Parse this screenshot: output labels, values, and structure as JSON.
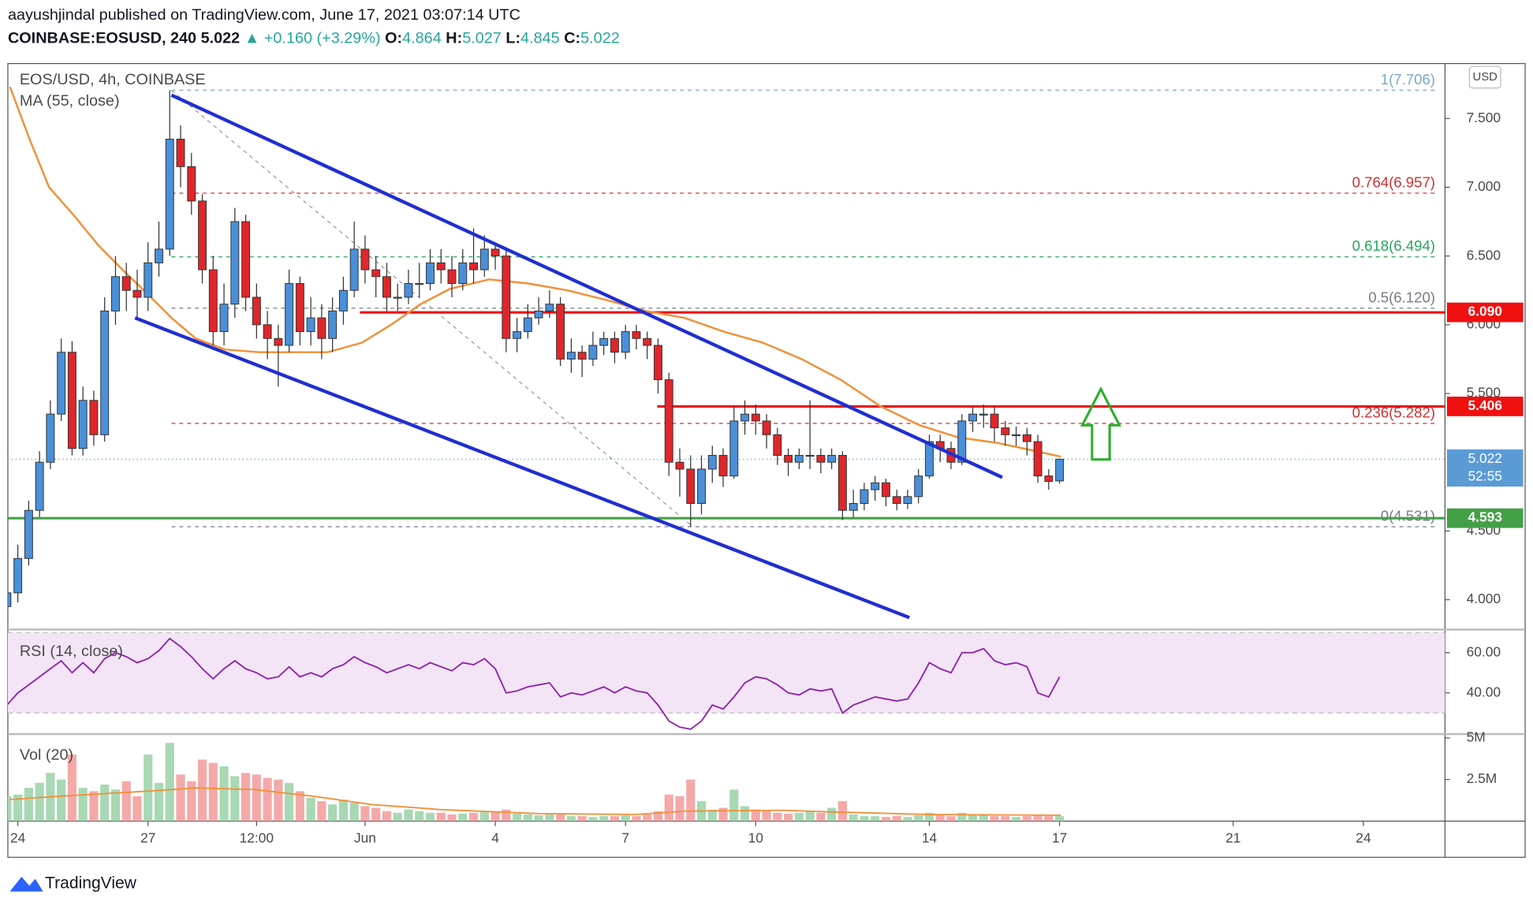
{
  "header": {
    "line1": "aayushjindal published on TradingView.com, June 17, 2021 03:07:14 UTC",
    "symbol": "COINBASE:EOSUSD, 240",
    "price": "5.022",
    "change": "▲ +0.160 (+3.29%)",
    "ohlc": [
      {
        "k": "O:",
        "v": "4.864"
      },
      {
        "k": "H:",
        "v": "5.027"
      },
      {
        "k": "L:",
        "v": "4.845"
      },
      {
        "k": "C:",
        "v": "5.022"
      }
    ]
  },
  "footer": {
    "brand": "TradingView"
  },
  "currency": "USD",
  "chart_data": [
    {
      "type": "candlestick",
      "title": "EOS/USD, 4h, COINBASE",
      "up_color": "#4a90d9",
      "down_color": "#e0262b",
      "grid": false,
      "xlim": [
        -0.23,
        32.88
      ],
      "ylim": [
        3.79,
        7.9
      ],
      "xticks": [
        {
          "value": 0,
          "label": "24"
        },
        {
          "value": 3,
          "label": "27"
        },
        {
          "value": 5.5,
          "label": "12:00"
        },
        {
          "value": 8,
          "label": "Jun"
        },
        {
          "value": 11,
          "label": "4"
        },
        {
          "value": 14,
          "label": "7"
        },
        {
          "value": 17,
          "label": "10"
        },
        {
          "value": 21,
          "label": "14"
        },
        {
          "value": 24,
          "label": "17"
        },
        {
          "value": 28,
          "label": "21"
        },
        {
          "value": 31,
          "label": "24"
        }
      ],
      "yticks": [
        {
          "value": 7.5,
          "label": "7.500"
        },
        {
          "value": 7,
          "label": "7.000"
        },
        {
          "value": 6.5,
          "label": "6.500"
        },
        {
          "value": 6,
          "label": "6.000"
        },
        {
          "value": 5.5,
          "label": "5.500"
        },
        {
          "value": 4.5,
          "label": "4.500"
        },
        {
          "value": 4,
          "label": "4.000"
        }
      ],
      "x": [
        -0.25,
        0,
        0.25,
        0.5,
        0.75,
        1,
        1.25,
        1.5,
        1.75,
        2,
        2.25,
        2.5,
        2.75,
        3,
        3.25,
        3.5,
        3.75,
        4,
        4.25,
        4.5,
        4.75,
        5,
        5.25,
        5.5,
        5.75,
        6,
        6.25,
        6.5,
        6.75,
        7,
        7.25,
        7.5,
        7.75,
        8,
        8.25,
        8.5,
        8.75,
        9,
        9.25,
        9.5,
        9.75,
        10,
        10.25,
        10.5,
        10.75,
        11,
        11.25,
        11.5,
        11.75,
        12,
        12.25,
        12.5,
        12.75,
        13,
        13.25,
        13.5,
        13.75,
        14,
        14.25,
        14.5,
        14.75,
        15,
        15.25,
        15.5,
        15.75,
        16,
        16.25,
        16.5,
        16.75,
        17,
        17.25,
        17.5,
        17.75,
        18,
        18.25,
        18.5,
        18.75,
        19,
        19.25,
        19.5,
        19.75,
        20,
        20.25,
        20.5,
        20.75,
        21,
        21.25,
        21.5,
        21.75,
        22,
        22.25,
        22.5,
        22.75,
        23,
        23.25,
        23.5,
        23.75,
        24
      ],
      "open": [
        3.95,
        4.05,
        4.3,
        4.65,
        5.0,
        5.35,
        5.8,
        5.1,
        5.45,
        5.2,
        6.1,
        6.35,
        6.25,
        6.2,
        6.45,
        6.55,
        7.35,
        7.15,
        6.9,
        6.4,
        5.95,
        6.15,
        6.75,
        6.2,
        6.0,
        5.9,
        5.85,
        6.3,
        5.95,
        6.05,
        5.9,
        6.1,
        6.25,
        6.55,
        6.4,
        6.35,
        6.2,
        6.2,
        6.3,
        6.3,
        6.45,
        6.4,
        6.3,
        6.45,
        6.4,
        6.55,
        6.5,
        5.9,
        5.95,
        6.05,
        6.1,
        6.15,
        5.75,
        5.8,
        5.75,
        5.85,
        5.9,
        5.8,
        5.95,
        5.9,
        5.85,
        5.6,
        5.0,
        4.95,
        4.7,
        4.95,
        5.05,
        4.9,
        5.3,
        5.35,
        5.3,
        5.2,
        5.05,
        5.0,
        5.05,
        5.05,
        5.0,
        5.05,
        4.65,
        4.7,
        4.8,
        4.85,
        4.75,
        4.7,
        4.75,
        4.9,
        5.15,
        5.1,
        5.0,
        5.3,
        5.35,
        5.35,
        5.25,
        5.2,
        5.2,
        5.15,
        4.9,
        4.864
      ],
      "high": [
        4.15,
        4.4,
        4.72,
        5.08,
        5.45,
        5.9,
        5.88,
        5.55,
        5.52,
        6.2,
        6.5,
        6.45,
        6.4,
        6.6,
        6.75,
        7.706,
        7.45,
        7.25,
        6.95,
        6.5,
        6.3,
        6.85,
        6.8,
        6.3,
        6.1,
        6.0,
        6.4,
        6.35,
        6.2,
        6.15,
        6.2,
        6.35,
        6.75,
        6.65,
        6.5,
        6.45,
        6.3,
        6.4,
        6.45,
        6.55,
        6.55,
        6.5,
        6.55,
        6.7,
        6.65,
        6.6,
        6.55,
        6.05,
        6.15,
        6.2,
        6.25,
        6.2,
        5.9,
        5.85,
        5.95,
        5.95,
        5.95,
        6.0,
        6.0,
        5.95,
        5.9,
        5.65,
        5.1,
        5.05,
        5.05,
        5.12,
        5.1,
        5.4,
        5.45,
        5.42,
        5.35,
        5.25,
        5.1,
        5.1,
        5.45,
        5.1,
        5.1,
        5.08,
        4.8,
        4.85,
        4.9,
        4.88,
        4.8,
        4.8,
        4.95,
        5.2,
        5.2,
        5.15,
        5.35,
        5.4,
        5.42,
        5.4,
        5.3,
        5.26,
        5.25,
        5.2,
        4.95,
        5.027
      ],
      "low": [
        3.9,
        3.98,
        4.25,
        4.6,
        4.95,
        5.3,
        5.05,
        5.05,
        5.12,
        5.15,
        6.0,
        6.1,
        6.05,
        6.1,
        6.35,
        6.5,
        7.0,
        6.8,
        6.3,
        5.85,
        5.85,
        6.05,
        6.1,
        5.9,
        5.75,
        5.55,
        5.8,
        5.85,
        5.85,
        5.75,
        5.8,
        6.0,
        6.2,
        6.3,
        6.2,
        6.1,
        6.1,
        6.15,
        6.2,
        6.25,
        6.3,
        6.2,
        6.25,
        6.3,
        6.35,
        6.4,
        5.8,
        5.8,
        5.9,
        6.0,
        6.05,
        5.7,
        5.65,
        5.62,
        5.7,
        5.78,
        5.72,
        5.75,
        5.82,
        5.75,
        5.5,
        4.9,
        4.75,
        4.531,
        4.62,
        4.85,
        4.82,
        4.88,
        5.2,
        5.2,
        5.1,
        4.98,
        4.9,
        4.95,
        4.95,
        4.92,
        4.95,
        4.58,
        4.6,
        4.65,
        4.72,
        4.68,
        4.65,
        4.66,
        4.7,
        4.88,
        5.0,
        4.95,
        4.98,
        5.22,
        5.25,
        5.15,
        5.12,
        5.12,
        5.05,
        4.85,
        4.8,
        4.845
      ],
      "close": [
        4.05,
        4.3,
        4.65,
        5.0,
        5.35,
        5.8,
        5.1,
        5.45,
        5.2,
        6.1,
        6.35,
        6.25,
        6.2,
        6.45,
        6.55,
        7.35,
        7.15,
        6.9,
        6.4,
        5.95,
        6.15,
        6.75,
        6.2,
        6.0,
        5.9,
        5.85,
        6.3,
        5.95,
        6.05,
        5.9,
        6.1,
        6.25,
        6.55,
        6.4,
        6.35,
        6.2,
        6.2,
        6.3,
        6.3,
        6.45,
        6.4,
        6.3,
        6.45,
        6.4,
        6.55,
        6.5,
        5.9,
        5.95,
        6.05,
        6.1,
        6.15,
        5.75,
        5.8,
        5.75,
        5.85,
        5.9,
        5.8,
        5.95,
        5.9,
        5.85,
        5.6,
        5.0,
        4.95,
        4.7,
        4.95,
        5.05,
        4.9,
        5.3,
        5.35,
        5.3,
        5.2,
        5.05,
        5.0,
        5.05,
        5.05,
        5.0,
        5.05,
        4.65,
        4.7,
        4.8,
        4.85,
        4.75,
        4.7,
        4.75,
        4.9,
        5.15,
        5.1,
        5.0,
        5.3,
        5.35,
        5.35,
        5.25,
        5.2,
        5.2,
        5.15,
        4.9,
        4.86,
        5.022
      ],
      "ma": {
        "name": "MA (55, close)",
        "color": "#f0913a",
        "x": [
          -0.18,
          0.27,
          0.72,
          1.28,
          1.85,
          2.41,
          2.97,
          3.54,
          4.1,
          4.77,
          5.56,
          6.35,
          7.14,
          7.93,
          8.6,
          9.28,
          9.95,
          10.86,
          11.76,
          12.66,
          13.56,
          14.46,
          15.36,
          16.26,
          17.16,
          18.06,
          18.96,
          19.86,
          20.77,
          21.67,
          22.57,
          23.47,
          24.03
        ],
        "values": [
          7.73,
          7.35,
          7.0,
          6.8,
          6.58,
          6.4,
          6.23,
          6.05,
          5.9,
          5.82,
          5.8,
          5.8,
          5.8,
          5.87,
          6.0,
          6.15,
          6.26,
          6.33,
          6.3,
          6.25,
          6.18,
          6.1,
          6.05,
          5.95,
          5.87,
          5.75,
          5.6,
          5.41,
          5.27,
          5.18,
          5.14,
          5.08,
          5.04
        ]
      },
      "trendlines": [
        {
          "color": "#1f2fd1",
          "points": [
            {
              "x": 3.54,
              "y": 7.67
            },
            {
              "x": 22.68,
              "y": 4.89
            }
          ]
        },
        {
          "color": "#1f2fd1",
          "points": [
            {
              "x": 2.7,
              "y": 6.05
            },
            {
              "x": 20.54,
              "y": 3.87
            }
          ]
        }
      ],
      "fib": {
        "start": 3.54,
        "diagonal": [
          {
            "x": 3.54,
            "y": 7.706
          },
          {
            "x": 15.55,
            "y": 4.531
          }
        ],
        "levels": [
          {
            "label": "1(7.706)",
            "value": 7.706,
            "color": "#7ea7c9"
          },
          {
            "label": "0.764(6.957)",
            "value": 6.957,
            "color": "#d32f2f"
          },
          {
            "label": "0.618(6.494)",
            "value": 6.494,
            "color": "#26a65b"
          },
          {
            "label": "0.5(6.120)",
            "value": 6.12,
            "color": "#787b86"
          },
          {
            "label": "0.236(5.282)",
            "value": 5.282,
            "color": "#d32f2f"
          },
          {
            "label": "0(4.531)",
            "value": 4.531,
            "color": "#787b86"
          }
        ]
      },
      "levels": [
        {
          "value": 6.09,
          "label": "6.090",
          "color": "#f01010",
          "from": 7.88
        },
        {
          "value": 5.406,
          "label": "5.406",
          "color": "#f01010",
          "from": 14.73
        },
        {
          "value": 4.593,
          "label": "4.593",
          "color": "#43a047",
          "from": -0.23
        }
      ],
      "last": {
        "value": 5.022,
        "label": "5.022",
        "countdown": "52:55",
        "color": "#5b9bd5"
      }
    },
    {
      "type": "line",
      "title": "RSI (14, close)",
      "color": "#8e24aa",
      "band": [
        30,
        70
      ],
      "band_color": "#f3e5f5",
      "ylim": [
        20,
        71
      ],
      "yticks": [
        {
          "value": 60,
          "label": "60.00"
        },
        {
          "value": 40,
          "label": "40.00"
        }
      ],
      "values": [
        34,
        40,
        44,
        48,
        52,
        56,
        50,
        55,
        50,
        57,
        60,
        58,
        55,
        57,
        61,
        67,
        63,
        58,
        52,
        47,
        52,
        56,
        52,
        50,
        47,
        48,
        53,
        48,
        50,
        48,
        52,
        54,
        58,
        55,
        53,
        50,
        52,
        54,
        52,
        55,
        53,
        51,
        55,
        54,
        57,
        52,
        40,
        41,
        43,
        44,
        45,
        38,
        40,
        39,
        41,
        43,
        40,
        43,
        41,
        40,
        34,
        26,
        23,
        22,
        26,
        34,
        32,
        38,
        45,
        48,
        47,
        44,
        40,
        39,
        42,
        41,
        42,
        30,
        34,
        36,
        38,
        37,
        36,
        37,
        45,
        55,
        52,
        50,
        60,
        60,
        62,
        56,
        54,
        55,
        53,
        40,
        38,
        48
      ]
    },
    {
      "type": "bar",
      "title": "Vol (20)",
      "up_color": "#a8d8b4",
      "down_color": "#f4a9a9",
      "ylim": [
        0,
        5170000
      ],
      "yticks": [
        {
          "value": 2500000,
          "label": "2.5M"
        },
        {
          "value": 5000000,
          "label": "5M"
        }
      ],
      "values": [
        1500000.0,
        1600000.0,
        2000000.0,
        2300000.0,
        2900000.0,
        2500000.0,
        4000000.0,
        2000000.0,
        1800000.0,
        2200000.0,
        1900000.0,
        2400000.0,
        1500000.0,
        4000000.0,
        2300000.0,
        4700000.0,
        2800000.0,
        2400000.0,
        3700000.0,
        3500000.0,
        3300000.0,
        2700000.0,
        2900000.0,
        2800000.0,
        2600000.0,
        2500000.0,
        2300000.0,
        1800000.0,
        1400000.0,
        1200000.0,
        1000000.0,
        1300000.0,
        1100000.0,
        900000.0,
        800000.0,
        600000.0,
        500000.0,
        700000.0,
        600000.0,
        500000.0,
        500000.0,
        400000.0,
        450000.0,
        500000.0,
        550000.0,
        600000.0,
        700000.0,
        450000.0,
        400000.0,
        350000.0,
        400000.0,
        450000.0,
        300000.0,
        300000.0,
        250000.0,
        300000.0,
        300000.0,
        350000.0,
        300000.0,
        400000.0,
        600000.0,
        1600000.0,
        1500000.0,
        2500000.0,
        1200000.0,
        700000.0,
        800000.0,
        1900000.0,
        900000.0,
        700000.0,
        600000.0,
        500000.0,
        450000.0,
        500000.0,
        600000.0,
        500000.0,
        800000.0,
        1200000.0,
        400000.0,
        300000.0,
        300000.0,
        250000.0,
        300000.0,
        250000.0,
        350000.0,
        500000.0,
        350000.0,
        300000.0,
        500000.0,
        400000.0,
        350000.0,
        300000.0,
        300000.0,
        250000.0,
        300000.0,
        400000.0,
        300000.0,
        300000.0
      ],
      "ma": {
        "color": "#f0913a",
        "x": [
          -0.18,
          0.95,
          2.97,
          4.1,
          5.45,
          6.8,
          8.15,
          9.73,
          11.98,
          14.23,
          15.36,
          17.61,
          18.74,
          20.99,
          24.03
        ],
        "values": [
          1300000.0,
          1500000.0,
          1800000.0,
          2000000.0,
          1900000.0,
          1500000.0,
          1000000.0,
          700000.0,
          450000.0,
          400000.0,
          600000.0,
          650000.0,
          550000.0,
          400000.0,
          350000.0
        ]
      }
    }
  ]
}
